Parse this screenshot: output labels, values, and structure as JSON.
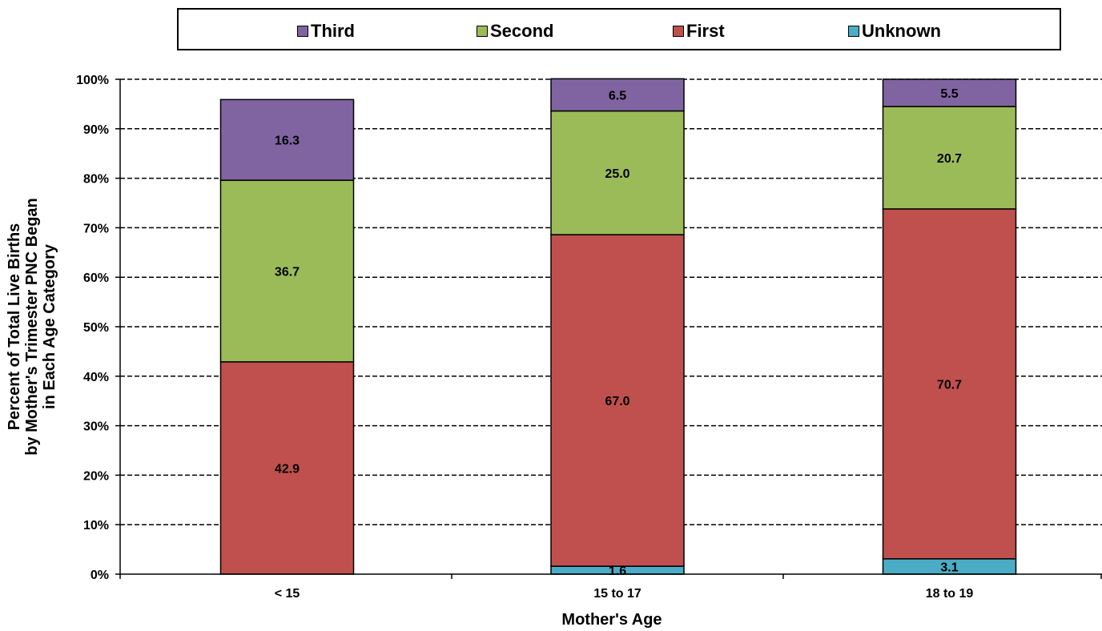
{
  "chart_data": {
    "type": "bar",
    "stacked": true,
    "xlabel": "Mother's Age",
    "ylabel_lines": [
      "Percent of Total Live Births",
      "by Mother's Trimester PNC Began",
      "in Each Age Category"
    ],
    "categories": [
      "< 15",
      "15 to 17",
      "18 to 19"
    ],
    "ylim": [
      0,
      100
    ],
    "yticks": [
      0,
      10,
      20,
      30,
      40,
      50,
      60,
      70,
      80,
      90,
      100
    ],
    "ytick_labels": [
      "0%",
      "10%",
      "20%",
      "30%",
      "40%",
      "50%",
      "60%",
      "70%",
      "80%",
      "90%",
      "100%"
    ],
    "grid": true,
    "legend_position": "top",
    "series": [
      {
        "name": "Unknown",
        "color": "#4bacc6",
        "values": [
          0,
          1.6,
          3.1
        ],
        "labels": [
          "",
          "1.6",
          "3.1"
        ]
      },
      {
        "name": "First",
        "color": "#c0504d",
        "values": [
          42.9,
          67.0,
          70.7
        ],
        "labels": [
          "42.9",
          "67.0",
          "70.7"
        ]
      },
      {
        "name": "Second",
        "color": "#9bbb59",
        "values": [
          36.7,
          25.0,
          20.7
        ],
        "labels": [
          "36.7",
          "25.0",
          "20.7"
        ]
      },
      {
        "name": "Third",
        "color": "#8064a2",
        "values": [
          16.3,
          6.5,
          5.5
        ],
        "labels": [
          "16.3",
          "6.5",
          "5.5"
        ]
      }
    ],
    "legend_order": [
      "Third",
      "Second",
      "First",
      "Unknown"
    ]
  }
}
